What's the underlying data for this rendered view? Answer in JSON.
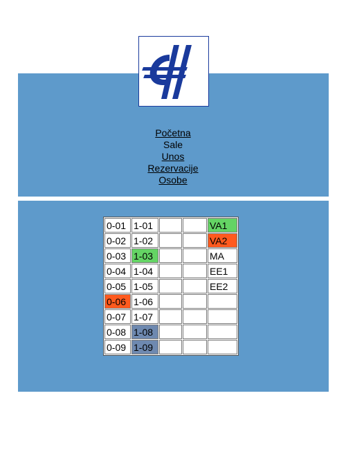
{
  "colors": {
    "band": "#5e9acb",
    "logo_blue": "#1a3a9c",
    "available": "#64d464",
    "occupied": "#ff5a1e",
    "reserved": "#6e89b0"
  },
  "logo": {
    "icon": "etf-logo-icon"
  },
  "nav": {
    "pocetna": "Početna",
    "sale": "Sale",
    "unos": "Unos",
    "rezervacije": "Rezervacije",
    "osobe": "Osobe"
  },
  "rooms": {
    "rows": [
      [
        {
          "label": "0-01",
          "status": ""
        },
        {
          "label": "1-01",
          "status": ""
        },
        {
          "label": "",
          "status": ""
        },
        {
          "label": "",
          "status": ""
        },
        {
          "label": "VA1",
          "status": "green"
        }
      ],
      [
        {
          "label": "0-02",
          "status": ""
        },
        {
          "label": "1-02",
          "status": ""
        },
        {
          "label": "",
          "status": ""
        },
        {
          "label": "",
          "status": ""
        },
        {
          "label": "VA2",
          "status": "red"
        }
      ],
      [
        {
          "label": "0-03",
          "status": ""
        },
        {
          "label": "1-03",
          "status": "green"
        },
        {
          "label": "",
          "status": ""
        },
        {
          "label": "",
          "status": ""
        },
        {
          "label": "MA",
          "status": ""
        }
      ],
      [
        {
          "label": "0-04",
          "status": ""
        },
        {
          "label": "1-04",
          "status": ""
        },
        {
          "label": "",
          "status": ""
        },
        {
          "label": "",
          "status": ""
        },
        {
          "label": "EE1",
          "status": ""
        }
      ],
      [
        {
          "label": "0-05",
          "status": ""
        },
        {
          "label": "1-05",
          "status": ""
        },
        {
          "label": "",
          "status": ""
        },
        {
          "label": "",
          "status": ""
        },
        {
          "label": "EE2",
          "status": ""
        }
      ],
      [
        {
          "label": "0-06",
          "status": "red"
        },
        {
          "label": "1-06",
          "status": ""
        },
        {
          "label": "",
          "status": ""
        },
        {
          "label": "",
          "status": ""
        },
        {
          "label": "",
          "status": ""
        }
      ],
      [
        {
          "label": "0-07",
          "status": ""
        },
        {
          "label": "1-07",
          "status": ""
        },
        {
          "label": "",
          "status": ""
        },
        {
          "label": "",
          "status": ""
        },
        {
          "label": "",
          "status": ""
        }
      ],
      [
        {
          "label": "0-08",
          "status": ""
        },
        {
          "label": "1-08",
          "status": "blue"
        },
        {
          "label": "",
          "status": ""
        },
        {
          "label": "",
          "status": ""
        },
        {
          "label": "",
          "status": ""
        }
      ],
      [
        {
          "label": "0-09",
          "status": ""
        },
        {
          "label": "1-09",
          "status": "blue"
        },
        {
          "label": "",
          "status": ""
        },
        {
          "label": "",
          "status": ""
        },
        {
          "label": "",
          "status": ""
        }
      ]
    ]
  }
}
